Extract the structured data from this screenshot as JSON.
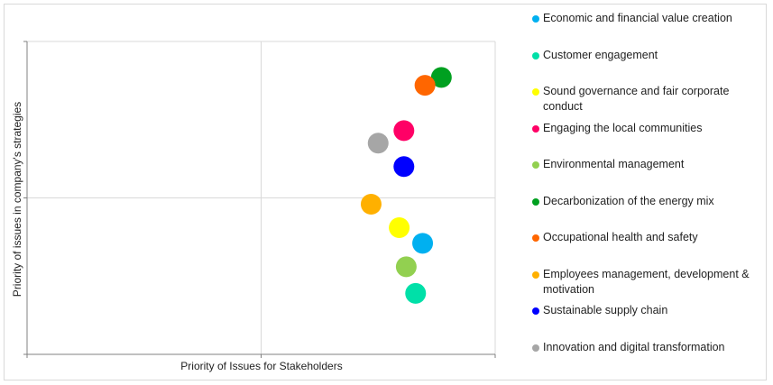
{
  "chart_data": {
    "type": "scatter",
    "xlabel": "Priority of Issues for Stakeholders",
    "ylabel": "Priority of issues in company's  strategies",
    "xlim": [
      0,
      2
    ],
    "ylim": [
      0,
      2
    ],
    "grid": true,
    "legend_position": "right",
    "series": [
      {
        "name": "Economic and financial value creation",
        "color": "#00b0f0",
        "x": 1.69,
        "y": 0.71
      },
      {
        "name": "Customer engagement",
        "color": "#00e0a8",
        "x": 1.66,
        "y": 0.39
      },
      {
        "name": "Sound governance and fair corporate conduct",
        "color": "#ffff00",
        "x": 1.59,
        "y": 0.81
      },
      {
        "name": "Engaging the local communities",
        "color": "#ff0066",
        "x": 1.61,
        "y": 1.43
      },
      {
        "name": "Environmental management",
        "color": "#92d050",
        "x": 1.62,
        "y": 0.56
      },
      {
        "name": "Decarbonization of the energy mix",
        "color": "#00a020",
        "x": 1.77,
        "y": 1.77
      },
      {
        "name": "Occupational health and safety",
        "color": "#ff6600",
        "x": 1.7,
        "y": 1.72
      },
      {
        "name": "Employees management, development & motivation",
        "color": "#ffb000",
        "x": 1.47,
        "y": 0.96
      },
      {
        "name": "Sustainable supply chain",
        "color": "#0000ff",
        "x": 1.61,
        "y": 1.2
      },
      {
        "name": "Innovation and digital transformation",
        "color": "#a6a6a6",
        "x": 1.5,
        "y": 1.35
      }
    ]
  }
}
